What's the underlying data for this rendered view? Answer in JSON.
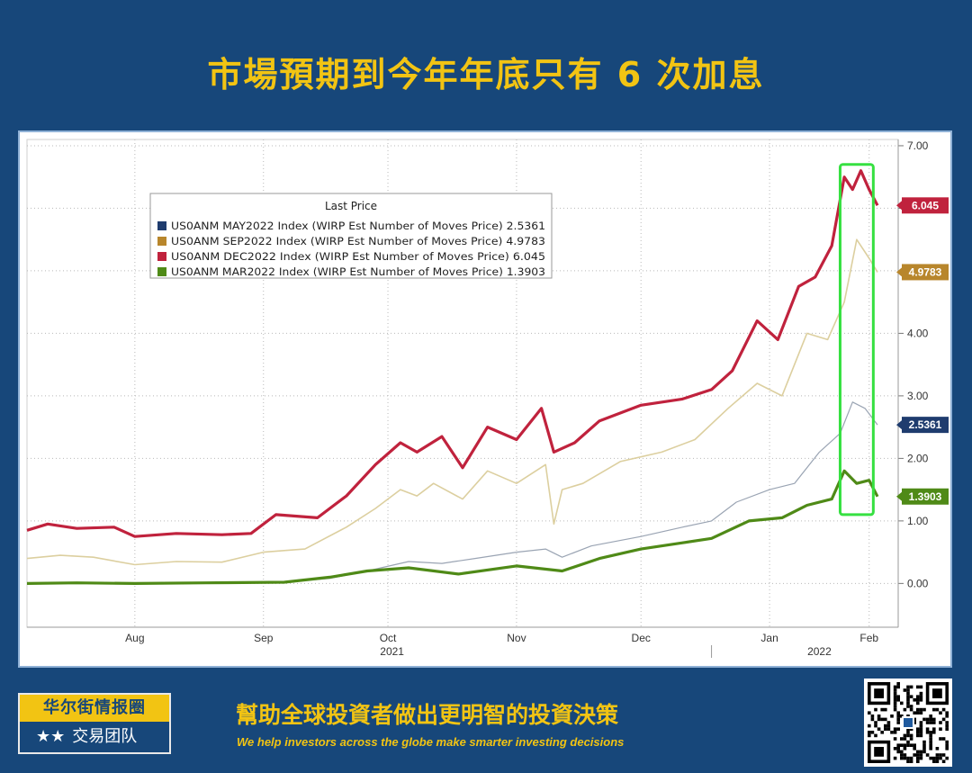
{
  "header": {
    "title": "市場預期到今年年底只有 6 次加息"
  },
  "footer": {
    "badge_top": "华尔街情报圈",
    "badge_stars": "★★",
    "badge_bottom": "交易团队",
    "slogan_cn": "幫助全球投資者做出更明智的投資決策",
    "slogan_en": "We help investors across the globe make smarter investing decisions"
  },
  "chart_data": {
    "type": "line",
    "legend_title": "Last Price",
    "legend_position": "top-left",
    "grid": true,
    "ylim": [
      -0.7,
      7.1
    ],
    "y_ticks": [
      0,
      1,
      2,
      3,
      4,
      5,
      6,
      7
    ],
    "y_tick_labels": [
      "0.00",
      "1.00",
      "2.00",
      "3.00",
      "4.00",
      "5.00",
      "6.00",
      "7.00"
    ],
    "x_axis": {
      "range": [
        "2021-07-20",
        "2022-02-15"
      ],
      "month_labels": [
        {
          "label": "Aug",
          "date": "2021-08-15"
        },
        {
          "label": "Sep",
          "date": "2021-09-15"
        },
        {
          "label": "Oct",
          "date": "2021-10-15"
        },
        {
          "label": "Nov",
          "date": "2021-11-15"
        },
        {
          "label": "Dec",
          "date": "2021-12-15"
        },
        {
          "label": "Jan",
          "date": "2022-01-15"
        },
        {
          "label": "Feb",
          "date": "2022-02-08"
        }
      ],
      "year_labels": [
        {
          "label": "2021",
          "date": "2021-10-16"
        },
        {
          "label": "2022",
          "date": "2022-01-27"
        }
      ],
      "year_divider": "2022-01-01"
    },
    "highlight": {
      "x_range": [
        "2022-02-01",
        "2022-02-09"
      ],
      "y_range": [
        1.1,
        6.7
      ],
      "color": "#36e041"
    },
    "series": [
      {
        "name": "US0ANM MAY2022 Index (WIRP Est Number of Moves Price)",
        "last": "2.5361",
        "color": "#9aa4b3",
        "legend_color": "#1f3c6e",
        "width": 1.2,
        "points": [
          [
            "2021-07-20",
            0.0
          ],
          [
            "2021-08-01",
            0.01
          ],
          [
            "2021-08-15",
            0.0
          ],
          [
            "2021-09-01",
            0.01
          ],
          [
            "2021-09-20",
            0.02
          ],
          [
            "2021-10-01",
            0.08
          ],
          [
            "2021-10-10",
            0.2
          ],
          [
            "2021-10-20",
            0.35
          ],
          [
            "2021-10-28",
            0.32
          ],
          [
            "2021-11-05",
            0.4
          ],
          [
            "2021-11-15",
            0.5
          ],
          [
            "2021-11-22",
            0.55
          ],
          [
            "2021-11-26",
            0.42
          ],
          [
            "2021-12-03",
            0.6
          ],
          [
            "2021-12-15",
            0.75
          ],
          [
            "2021-12-25",
            0.9
          ],
          [
            "2022-01-01",
            1.0
          ],
          [
            "2022-01-07",
            1.3
          ],
          [
            "2022-01-15",
            1.5
          ],
          [
            "2022-01-21",
            1.6
          ],
          [
            "2022-01-27",
            2.1
          ],
          [
            "2022-02-01",
            2.4
          ],
          [
            "2022-02-04",
            2.9
          ],
          [
            "2022-02-07",
            2.8
          ],
          [
            "2022-02-10",
            2.5361
          ]
        ]
      },
      {
        "name": "US0ANM SEP2022 Index (WIRP Est Number of Moves Price)",
        "last": "4.9783",
        "color": "#dccf9f",
        "legend_color": "#b8862c",
        "width": 1.6,
        "points": [
          [
            "2021-07-20",
            0.4
          ],
          [
            "2021-07-28",
            0.45
          ],
          [
            "2021-08-05",
            0.42
          ],
          [
            "2021-08-15",
            0.3
          ],
          [
            "2021-08-25",
            0.35
          ],
          [
            "2021-09-05",
            0.34
          ],
          [
            "2021-09-15",
            0.5
          ],
          [
            "2021-09-25",
            0.55
          ],
          [
            "2021-10-05",
            0.9
          ],
          [
            "2021-10-12",
            1.2
          ],
          [
            "2021-10-18",
            1.5
          ],
          [
            "2021-10-22",
            1.4
          ],
          [
            "2021-10-26",
            1.6
          ],
          [
            "2021-11-02",
            1.35
          ],
          [
            "2021-11-08",
            1.8
          ],
          [
            "2021-11-15",
            1.6
          ],
          [
            "2021-11-22",
            1.9
          ],
          [
            "2021-11-24",
            0.95
          ],
          [
            "2021-11-26",
            1.5
          ],
          [
            "2021-12-01",
            1.6
          ],
          [
            "2021-12-10",
            1.95
          ],
          [
            "2021-12-20",
            2.1
          ],
          [
            "2021-12-28",
            2.3
          ],
          [
            "2022-01-05",
            2.8
          ],
          [
            "2022-01-12",
            3.2
          ],
          [
            "2022-01-18",
            3.0
          ],
          [
            "2022-01-24",
            4.0
          ],
          [
            "2022-01-29",
            3.9
          ],
          [
            "2022-02-02",
            4.5
          ],
          [
            "2022-02-05",
            5.5
          ],
          [
            "2022-02-08",
            5.2
          ],
          [
            "2022-02-10",
            4.9783
          ]
        ]
      },
      {
        "name": "US0ANM DEC2022 Index (WIRP Est Number of Moves Price)",
        "last": "6.045",
        "color": "#c0223d",
        "legend_color": "#c0223d",
        "width": 3.2,
        "points": [
          [
            "2021-07-20",
            0.85
          ],
          [
            "2021-07-25",
            0.95
          ],
          [
            "2021-08-01",
            0.88
          ],
          [
            "2021-08-10",
            0.9
          ],
          [
            "2021-08-15",
            0.75
          ],
          [
            "2021-08-25",
            0.8
          ],
          [
            "2021-09-05",
            0.78
          ],
          [
            "2021-09-12",
            0.8
          ],
          [
            "2021-09-18",
            1.1
          ],
          [
            "2021-09-28",
            1.05
          ],
          [
            "2021-10-05",
            1.4
          ],
          [
            "2021-10-12",
            1.9
          ],
          [
            "2021-10-18",
            2.25
          ],
          [
            "2021-10-22",
            2.1
          ],
          [
            "2021-10-28",
            2.35
          ],
          [
            "2021-11-02",
            1.85
          ],
          [
            "2021-11-08",
            2.5
          ],
          [
            "2021-11-15",
            2.3
          ],
          [
            "2021-11-21",
            2.8
          ],
          [
            "2021-11-24",
            2.1
          ],
          [
            "2021-11-29",
            2.25
          ],
          [
            "2021-12-05",
            2.6
          ],
          [
            "2021-12-15",
            2.85
          ],
          [
            "2021-12-25",
            2.95
          ],
          [
            "2022-01-01",
            3.1
          ],
          [
            "2022-01-06",
            3.4
          ],
          [
            "2022-01-12",
            4.2
          ],
          [
            "2022-01-17",
            3.9
          ],
          [
            "2022-01-22",
            4.75
          ],
          [
            "2022-01-26",
            4.9
          ],
          [
            "2022-01-30",
            5.4
          ],
          [
            "2022-02-02",
            6.5
          ],
          [
            "2022-02-04",
            6.3
          ],
          [
            "2022-02-06",
            6.6
          ],
          [
            "2022-02-08",
            6.3
          ],
          [
            "2022-02-10",
            6.045
          ]
        ]
      },
      {
        "name": "US0ANM MAR2022 Index (WIRP Est Number of Moves Price)",
        "last": "1.3903",
        "color": "#4f8a17",
        "legend_color": "#4f8a17",
        "width": 3.2,
        "points": [
          [
            "2021-07-20",
            0.0
          ],
          [
            "2021-08-01",
            0.01
          ],
          [
            "2021-08-15",
            0.0
          ],
          [
            "2021-09-01",
            0.01
          ],
          [
            "2021-09-20",
            0.02
          ],
          [
            "2021-10-01",
            0.1
          ],
          [
            "2021-10-10",
            0.2
          ],
          [
            "2021-10-20",
            0.25
          ],
          [
            "2021-11-01",
            0.15
          ],
          [
            "2021-11-15",
            0.28
          ],
          [
            "2021-11-26",
            0.2
          ],
          [
            "2021-12-05",
            0.4
          ],
          [
            "2021-12-15",
            0.55
          ],
          [
            "2021-12-25",
            0.65
          ],
          [
            "2022-01-01",
            0.72
          ],
          [
            "2022-01-10",
            1.0
          ],
          [
            "2022-01-18",
            1.05
          ],
          [
            "2022-01-24",
            1.25
          ],
          [
            "2022-01-30",
            1.35
          ],
          [
            "2022-02-02",
            1.8
          ],
          [
            "2022-02-05",
            1.6
          ],
          [
            "2022-02-08",
            1.65
          ],
          [
            "2022-02-10",
            1.3903
          ]
        ]
      }
    ]
  }
}
